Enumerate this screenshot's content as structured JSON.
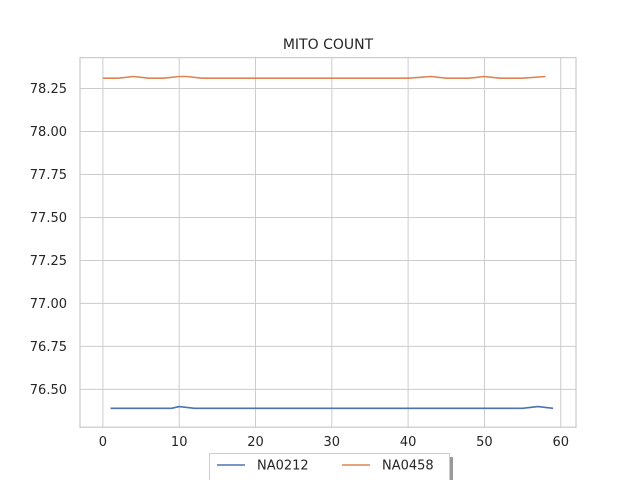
{
  "chart_data": {
    "type": "line",
    "title": "MITO COUNT",
    "xlabel": "",
    "ylabel": "",
    "xlim": [
      -3,
      62
    ],
    "ylim": [
      76.28,
      78.43
    ],
    "xticks": [
      0,
      10,
      20,
      30,
      40,
      50,
      60
    ],
    "yticks": [
      76.5,
      76.75,
      77.0,
      77.25,
      77.5,
      77.75,
      78.0,
      78.25
    ],
    "ytick_labels": [
      "76.50",
      "76.75",
      "77.00",
      "77.25",
      "77.50",
      "77.75",
      "78.00",
      "78.25"
    ],
    "grid": true,
    "legend_position": "bottom-center",
    "series": [
      {
        "name": "NA0212",
        "color": "#4c72b0",
        "x": [
          1,
          2,
          4,
          6,
          8,
          9,
          10,
          12,
          15,
          20,
          25,
          30,
          35,
          40,
          42,
          45,
          50,
          55,
          57,
          59
        ],
        "y": [
          76.39,
          76.39,
          76.39,
          76.39,
          76.39,
          76.39,
          76.4,
          76.39,
          76.39,
          76.39,
          76.39,
          76.39,
          76.39,
          76.39,
          76.39,
          76.39,
          76.39,
          76.39,
          76.4,
          76.39
        ]
      },
      {
        "name": "NA0458",
        "color": "#dd8452",
        "x": [
          0,
          2,
          4,
          6,
          8,
          10,
          11,
          13,
          15,
          18,
          20,
          25,
          30,
          33,
          35,
          40,
          43,
          45,
          48,
          50,
          52,
          55,
          58
        ],
        "y": [
          78.31,
          78.31,
          78.32,
          78.31,
          78.31,
          78.32,
          78.32,
          78.31,
          78.31,
          78.31,
          78.31,
          78.31,
          78.31,
          78.31,
          78.31,
          78.31,
          78.32,
          78.31,
          78.31,
          78.32,
          78.31,
          78.31,
          78.32
        ]
      }
    ]
  }
}
